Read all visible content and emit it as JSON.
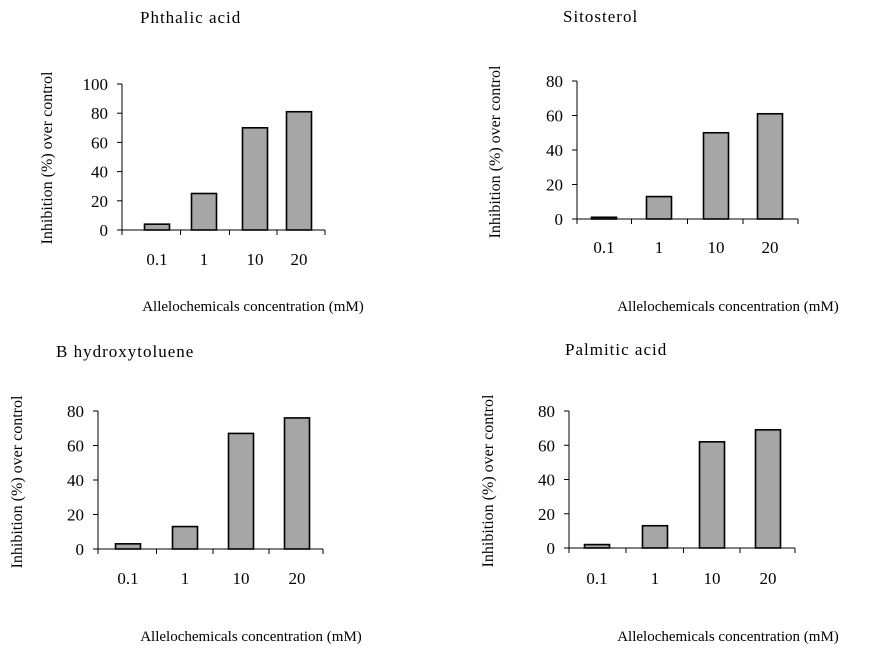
{
  "chart_data": [
    {
      "type": "bar",
      "title": "Phthalic acid",
      "categories": [
        "0.1",
        "1",
        "10",
        "20"
      ],
      "values": [
        4,
        25,
        70,
        81
      ],
      "ylabel": "Inhibition (%) over control",
      "xlabel": "Allelochemicals concentration (mM)",
      "ylim": [
        0,
        100
      ],
      "yticks": [
        0,
        20,
        40,
        60,
        80,
        100
      ],
      "grid": false,
      "bar_color": "#a6a6a6"
    },
    {
      "type": "bar",
      "title": "Sitosterol",
      "categories": [
        "0.1",
        "1",
        "10",
        "20"
      ],
      "values": [
        1,
        13,
        50,
        61
      ],
      "ylabel": "Inhibition (%) over control",
      "xlabel": "Allelochemicals concentration (mM)",
      "ylim": [
        0,
        80
      ],
      "yticks": [
        0,
        20,
        40,
        60,
        80
      ],
      "grid": false,
      "bar_color": "#a6a6a6"
    },
    {
      "type": "bar",
      "title": "B hydroxytoluene",
      "categories": [
        "0.1",
        "1",
        "10",
        "20"
      ],
      "values": [
        3,
        13,
        67,
        76
      ],
      "ylabel": "Inhibition (%) over control",
      "xlabel": "Allelochemicals concentration (mM)",
      "ylim": [
        0,
        80
      ],
      "yticks": [
        0,
        20,
        40,
        60,
        80
      ],
      "grid": false,
      "bar_color": "#a6a6a6"
    },
    {
      "type": "bar",
      "title": "Palmitic acid",
      "categories": [
        "0.1",
        "1",
        "10",
        "20"
      ],
      "values": [
        2,
        13,
        62,
        69
      ],
      "ylabel": "Inhibition (%) over control",
      "xlabel": "Allelochemicals concentration (mM)",
      "ylim": [
        0,
        80
      ],
      "yticks": [
        0,
        20,
        40,
        60,
        80
      ],
      "grid": false,
      "bar_color": "#a6a6a6"
    }
  ]
}
